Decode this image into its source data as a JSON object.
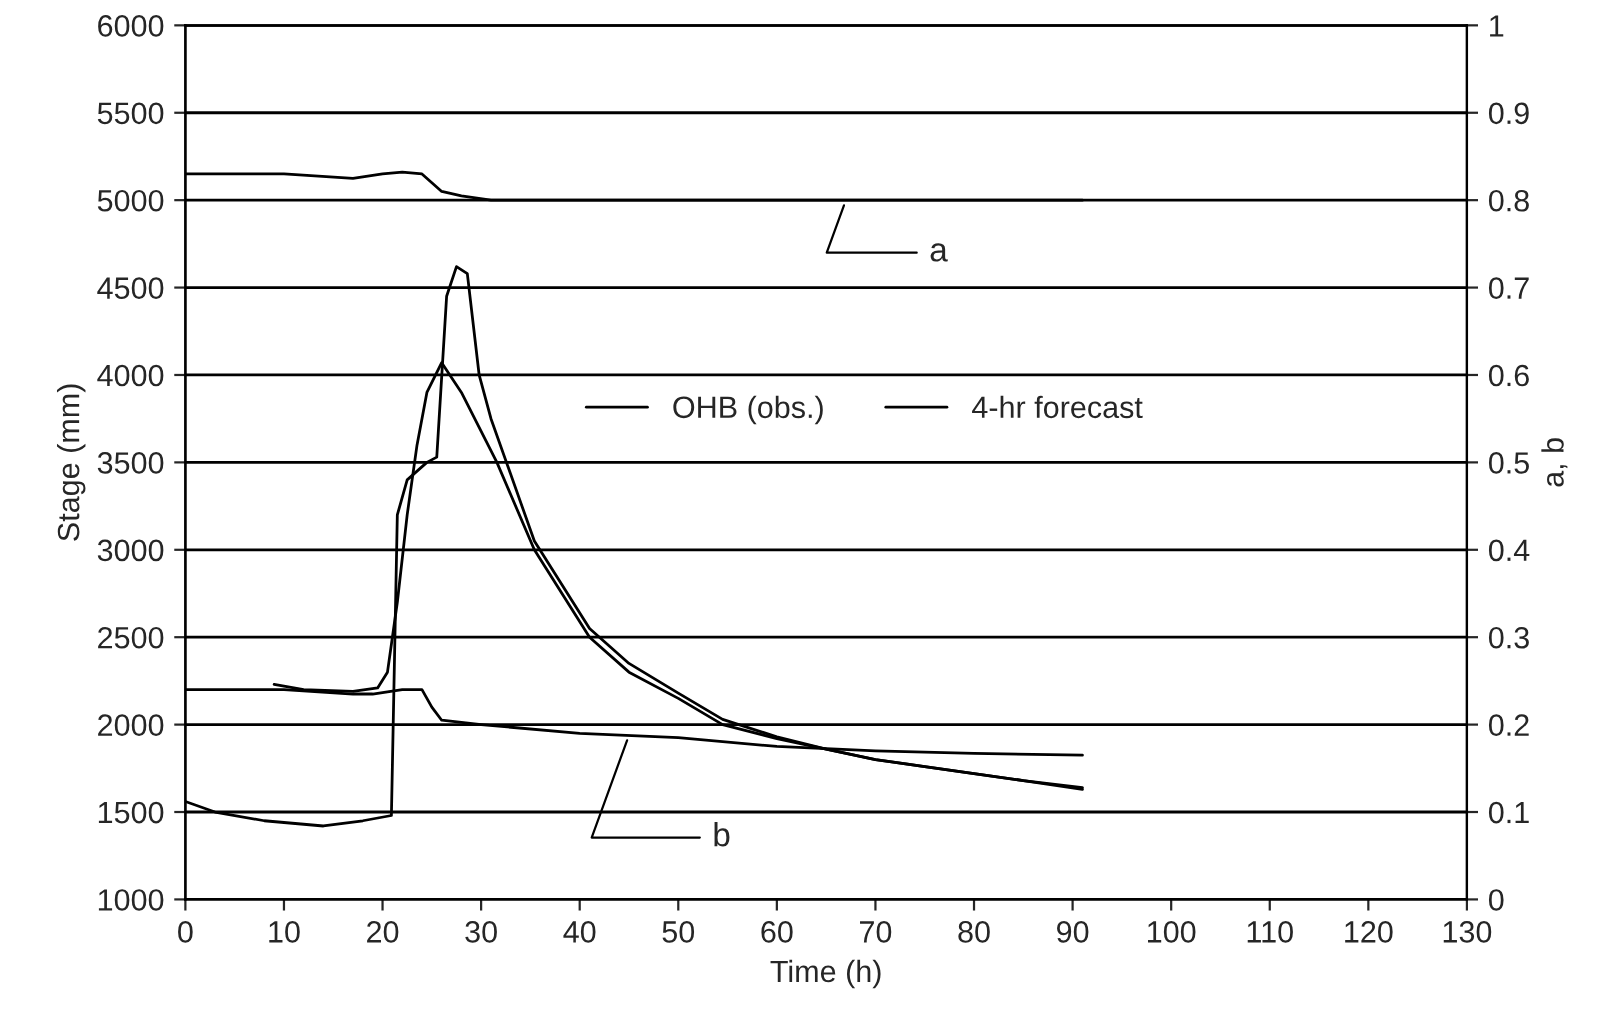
{
  "chart_data": {
    "type": "line",
    "xlabel": "Time (h)",
    "ylabel": "Stage (mm)",
    "y2label": "a, b",
    "xlim": [
      0,
      130
    ],
    "xticks": [
      0,
      10,
      20,
      30,
      40,
      50,
      60,
      70,
      80,
      90,
      100,
      110,
      120,
      130
    ],
    "ylim": [
      1000,
      6000
    ],
    "yticks": [
      1000,
      1500,
      2000,
      2500,
      3000,
      3500,
      4000,
      4500,
      5000,
      5500,
      6000
    ],
    "y2lim": [
      0,
      1
    ],
    "y2ticks": [
      0,
      0.1,
      0.2,
      0.3,
      0.4,
      0.5,
      0.6,
      0.7,
      0.8,
      0.9,
      1
    ],
    "grid": "y",
    "legend": "center",
    "line_style": "solid",
    "marker": "none",
    "series": [
      {
        "name": "OHB (obs.)",
        "color": "#000000",
        "x": [
          9,
          12,
          17,
          19.5,
          20.5,
          21.5,
          22.5,
          23.5,
          24.5,
          26,
          28,
          31.6,
          35.4,
          41,
          45,
          50,
          54.5,
          60,
          65,
          70,
          75,
          80,
          85,
          91
        ],
        "values": [
          2230,
          2200,
          2190,
          2210,
          2300,
          2700,
          3200,
          3600,
          3900,
          4070,
          3900,
          3500,
          3000,
          2500,
          2300,
          2150,
          2000,
          1920,
          1860,
          1800,
          1760,
          1720,
          1680,
          1640
        ]
      },
      {
        "name": "4-hr forecast",
        "color": "#000000",
        "x": [
          0,
          3,
          8,
          14,
          18,
          20.9,
          21.5,
          22.5,
          24.5,
          25.5,
          26.5,
          27.5,
          28.6,
          29.8,
          31,
          35.4,
          41,
          45,
          50,
          54.5,
          60,
          65,
          70,
          75,
          80,
          85,
          91
        ],
        "values": [
          1560,
          1500,
          1450,
          1420,
          1450,
          1480,
          3200,
          3400,
          3500,
          3530,
          4450,
          4620,
          4580,
          4000,
          3750,
          3050,
          2550,
          2350,
          2180,
          2030,
          1930,
          1860,
          1800,
          1760,
          1720,
          1680,
          1630
        ]
      },
      {
        "axis": "y2",
        "color": "#000000",
        "x": [
          0,
          10,
          17,
          20,
          22,
          24,
          26,
          28,
          31,
          40,
          50,
          60,
          70,
          80,
          91
        ],
        "values": [
          0.83,
          0.83,
          0.825,
          0.83,
          0.832,
          0.83,
          0.81,
          0.805,
          0.8,
          0.8,
          0.8,
          0.8,
          0.8,
          0.8,
          0.8
        ]
      },
      {
        "axis": "y2",
        "color": "#000000",
        "x": [
          0,
          10,
          17,
          19,
          22,
          24,
          25,
          26,
          30,
          40,
          50,
          60,
          70,
          80,
          91
        ],
        "values": [
          0.24,
          0.24,
          0.235,
          0.235,
          0.24,
          0.24,
          0.22,
          0.205,
          0.2,
          0.19,
          0.185,
          0.175,
          0.17,
          0.167,
          0.165
        ]
      }
    ],
    "annotations": [
      {
        "text": "a",
        "x": 67,
        "y": 5000
      },
      {
        "text": "b",
        "x": 45,
        "y": 1940
      }
    ]
  }
}
